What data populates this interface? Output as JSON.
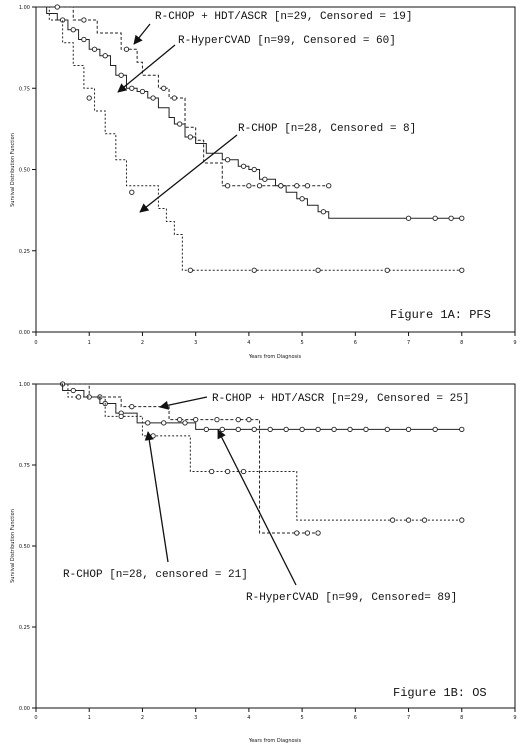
{
  "chart_data": [
    {
      "type": "line",
      "subtype": "kaplan-meier",
      "ylabel": "Survival Distribution Function",
      "xlabel": "Years from Diagnosis",
      "xlim": [
        0,
        9
      ],
      "ylim": [
        0,
        1
      ],
      "xticks": [
        0,
        1,
        2,
        3,
        4,
        5,
        6,
        7,
        8,
        9
      ],
      "yticks": [
        "0.00",
        "0.25",
        "0.50",
        "0.75",
        "1.00"
      ],
      "figure_label": "Figure 1A: PFS",
      "annotations": {
        "hdt": "R-CHOP + HDT/ASCR [n=29, Censored = 19]",
        "hyper": "R-HyperCVAD [n=99, Censored = 60]",
        "rchop": "R-CHOP [n=28, Censored = 8]"
      },
      "series": [
        {
          "key": "hdt",
          "dash": "3,2",
          "x": [
            0,
            0.7,
            1.15,
            1.6,
            1.9,
            2.0,
            2.3,
            2.5,
            2.8,
            3.0,
            3.15,
            3.5,
            3.9,
            5.5
          ],
          "y": [
            1.0,
            0.96,
            0.92,
            0.87,
            0.83,
            0.79,
            0.75,
            0.72,
            0.63,
            0.59,
            0.52,
            0.45,
            0.45,
            0.45
          ],
          "censored": [
            [
              0.4,
              1.0
            ],
            [
              0.9,
              0.96
            ],
            [
              1.7,
              0.87
            ],
            [
              2.4,
              0.75
            ],
            [
              2.6,
              0.72
            ],
            [
              3.6,
              0.45
            ],
            [
              4.0,
              0.45
            ],
            [
              4.2,
              0.45
            ],
            [
              4.6,
              0.45
            ],
            [
              4.9,
              0.45
            ],
            [
              5.1,
              0.45
            ],
            [
              5.5,
              0.45
            ]
          ]
        },
        {
          "key": "hyper",
          "dash": "",
          "x": [
            0,
            0.2,
            0.4,
            0.6,
            0.8,
            1.0,
            1.2,
            1.4,
            1.5,
            1.7,
            1.9,
            2.1,
            2.3,
            2.5,
            2.6,
            2.8,
            3.0,
            3.2,
            3.5,
            3.8,
            4.0,
            4.2,
            4.5,
            4.7,
            4.9,
            5.1,
            5.3,
            5.5,
            8.0
          ],
          "y": [
            1.0,
            0.98,
            0.96,
            0.93,
            0.9,
            0.87,
            0.85,
            0.82,
            0.79,
            0.75,
            0.74,
            0.72,
            0.69,
            0.66,
            0.64,
            0.6,
            0.58,
            0.55,
            0.53,
            0.51,
            0.5,
            0.47,
            0.45,
            0.43,
            0.41,
            0.39,
            0.37,
            0.35,
            0.35
          ],
          "censored": [
            [
              0.5,
              0.96
            ],
            [
              0.7,
              0.93
            ],
            [
              0.9,
              0.9
            ],
            [
              1.1,
              0.87
            ],
            [
              1.3,
              0.85
            ],
            [
              1.6,
              0.79
            ],
            [
              1.8,
              0.75
            ],
            [
              2.0,
              0.74
            ],
            [
              2.2,
              0.72
            ],
            [
              2.7,
              0.64
            ],
            [
              2.9,
              0.6
            ],
            [
              3.6,
              0.53
            ],
            [
              3.9,
              0.51
            ],
            [
              4.1,
              0.5
            ],
            [
              4.3,
              0.47
            ],
            [
              4.6,
              0.45
            ],
            [
              5.0,
              0.41
            ],
            [
              5.4,
              0.37
            ],
            [
              7.0,
              0.35
            ],
            [
              7.5,
              0.35
            ],
            [
              7.8,
              0.35
            ],
            [
              8.0,
              0.35
            ]
          ]
        },
        {
          "key": "rchop",
          "dash": "2,2",
          "x": [
            0,
            0.25,
            0.5,
            0.7,
            0.9,
            1.1,
            1.3,
            1.5,
            1.7,
            2.3,
            2.45,
            2.6,
            2.75,
            8.0
          ],
          "y": [
            1.0,
            0.96,
            0.89,
            0.82,
            0.75,
            0.68,
            0.61,
            0.53,
            0.45,
            0.38,
            0.34,
            0.3,
            0.19,
            0.19
          ],
          "censored": [
            [
              1.0,
              0.72
            ],
            [
              1.8,
              0.43
            ],
            [
              2.9,
              0.19
            ],
            [
              4.1,
              0.19
            ],
            [
              5.3,
              0.19
            ],
            [
              6.6,
              0.19
            ],
            [
              8.0,
              0.19
            ]
          ]
        }
      ]
    },
    {
      "type": "line",
      "subtype": "kaplan-meier",
      "ylabel": "Survival Distribution Function",
      "xlabel": "Years from Diagnosis",
      "xlim": [
        0,
        9
      ],
      "ylim": [
        0,
        1
      ],
      "xticks": [
        0,
        1,
        2,
        3,
        4,
        5,
        6,
        7,
        8,
        9
      ],
      "yticks": [
        "0.00",
        "0.25",
        "0.50",
        "0.75",
        "1.00"
      ],
      "figure_label": "Figure 1B: OS",
      "annotations": {
        "hdt": "R-CHOP + HDT/ASCR [n=29, Censored = 25]",
        "hyper": "R-HyperCVAD [n=99, Censored= 89]",
        "rchop": "R-CHOP [n=28, censored = 21]"
      },
      "series": [
        {
          "key": "hdt",
          "dash": "3,2",
          "x": [
            0,
            1.0,
            1.6,
            2.5,
            4.2,
            5.3
          ],
          "y": [
            1.0,
            0.96,
            0.93,
            0.89,
            0.54,
            0.54
          ],
          "censored": [
            [
              0.5,
              1.0
            ],
            [
              1.2,
              0.96
            ],
            [
              1.8,
              0.93
            ],
            [
              2.7,
              0.89
            ],
            [
              3.0,
              0.89
            ],
            [
              3.4,
              0.89
            ],
            [
              3.8,
              0.89
            ],
            [
              4.0,
              0.89
            ],
            [
              4.9,
              0.54
            ],
            [
              5.1,
              0.54
            ],
            [
              5.3,
              0.54
            ]
          ]
        },
        {
          "key": "hyper",
          "dash": "",
          "x": [
            0,
            0.5,
            0.9,
            1.2,
            1.5,
            1.9,
            3.0,
            8.0
          ],
          "y": [
            1.0,
            0.98,
            0.96,
            0.94,
            0.91,
            0.88,
            0.86,
            0.86
          ],
          "censored": [
            [
              0.7,
              0.98
            ],
            [
              1.0,
              0.96
            ],
            [
              1.3,
              0.94
            ],
            [
              1.6,
              0.91
            ],
            [
              2.1,
              0.88
            ],
            [
              2.4,
              0.88
            ],
            [
              2.8,
              0.88
            ],
            [
              3.2,
              0.86
            ],
            [
              3.5,
              0.86
            ],
            [
              3.8,
              0.86
            ],
            [
              4.1,
              0.86
            ],
            [
              4.4,
              0.86
            ],
            [
              4.7,
              0.86
            ],
            [
              5.0,
              0.86
            ],
            [
              5.3,
              0.86
            ],
            [
              5.6,
              0.86
            ],
            [
              5.9,
              0.86
            ],
            [
              6.2,
              0.86
            ],
            [
              6.6,
              0.86
            ],
            [
              7.0,
              0.86
            ],
            [
              7.5,
              0.86
            ],
            [
              8.0,
              0.86
            ]
          ]
        },
        {
          "key": "rchop",
          "dash": "2,2",
          "x": [
            0,
            0.6,
            1.3,
            2.0,
            2.9,
            4.9,
            8.0
          ],
          "y": [
            1.0,
            0.96,
            0.9,
            0.84,
            0.73,
            0.58,
            0.58
          ],
          "censored": [
            [
              0.8,
              0.96
            ],
            [
              1.6,
              0.9
            ],
            [
              2.2,
              0.84
            ],
            [
              3.3,
              0.73
            ],
            [
              3.6,
              0.73
            ],
            [
              3.9,
              0.73
            ],
            [
              6.7,
              0.58
            ],
            [
              7.0,
              0.58
            ],
            [
              7.3,
              0.58
            ],
            [
              8.0,
              0.58
            ]
          ]
        }
      ]
    }
  ]
}
